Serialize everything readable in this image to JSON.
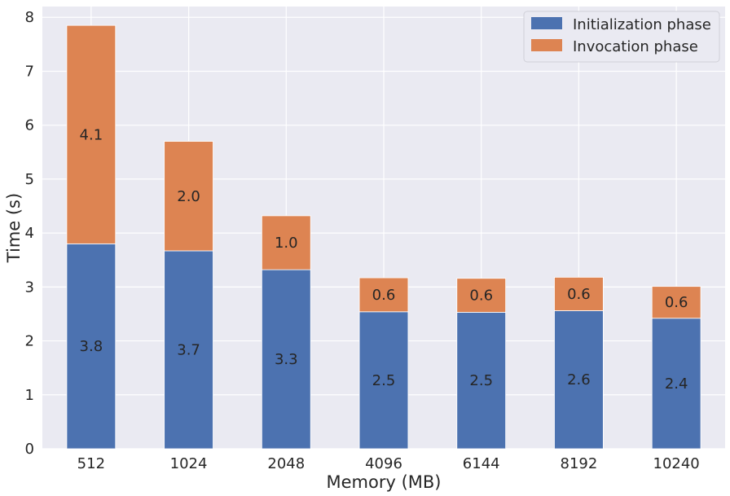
{
  "chart_data": {
    "type": "bar",
    "stacked": true,
    "title": "",
    "xlabel": "Memory (MB)",
    "ylabel": "Time (s)",
    "categories": [
      "512",
      "1024",
      "2048",
      "4096",
      "6144",
      "8192",
      "10240"
    ],
    "series": [
      {
        "name": "Initialization phase",
        "color": "#4c72b0",
        "values": [
          3.8,
          3.67,
          3.32,
          2.54,
          2.53,
          2.56,
          2.42
        ],
        "labels": [
          "3.8",
          "3.7",
          "3.3",
          "2.5",
          "2.5",
          "2.6",
          "2.4"
        ]
      },
      {
        "name": "Invocation phase",
        "color": "#dd8452",
        "values": [
          4.05,
          2.03,
          1.0,
          0.63,
          0.63,
          0.62,
          0.59
        ],
        "labels": [
          "4.1",
          "2.0",
          "1.0",
          "0.6",
          "0.6",
          "0.6",
          "0.6"
        ]
      }
    ],
    "ylim": [
      0,
      8.2
    ],
    "yticks": [
      "0",
      "1",
      "2",
      "3",
      "4",
      "5",
      "6",
      "7",
      "8"
    ],
    "grid": true,
    "legend_position": "top-right",
    "background_color": "#eaeaf2"
  }
}
